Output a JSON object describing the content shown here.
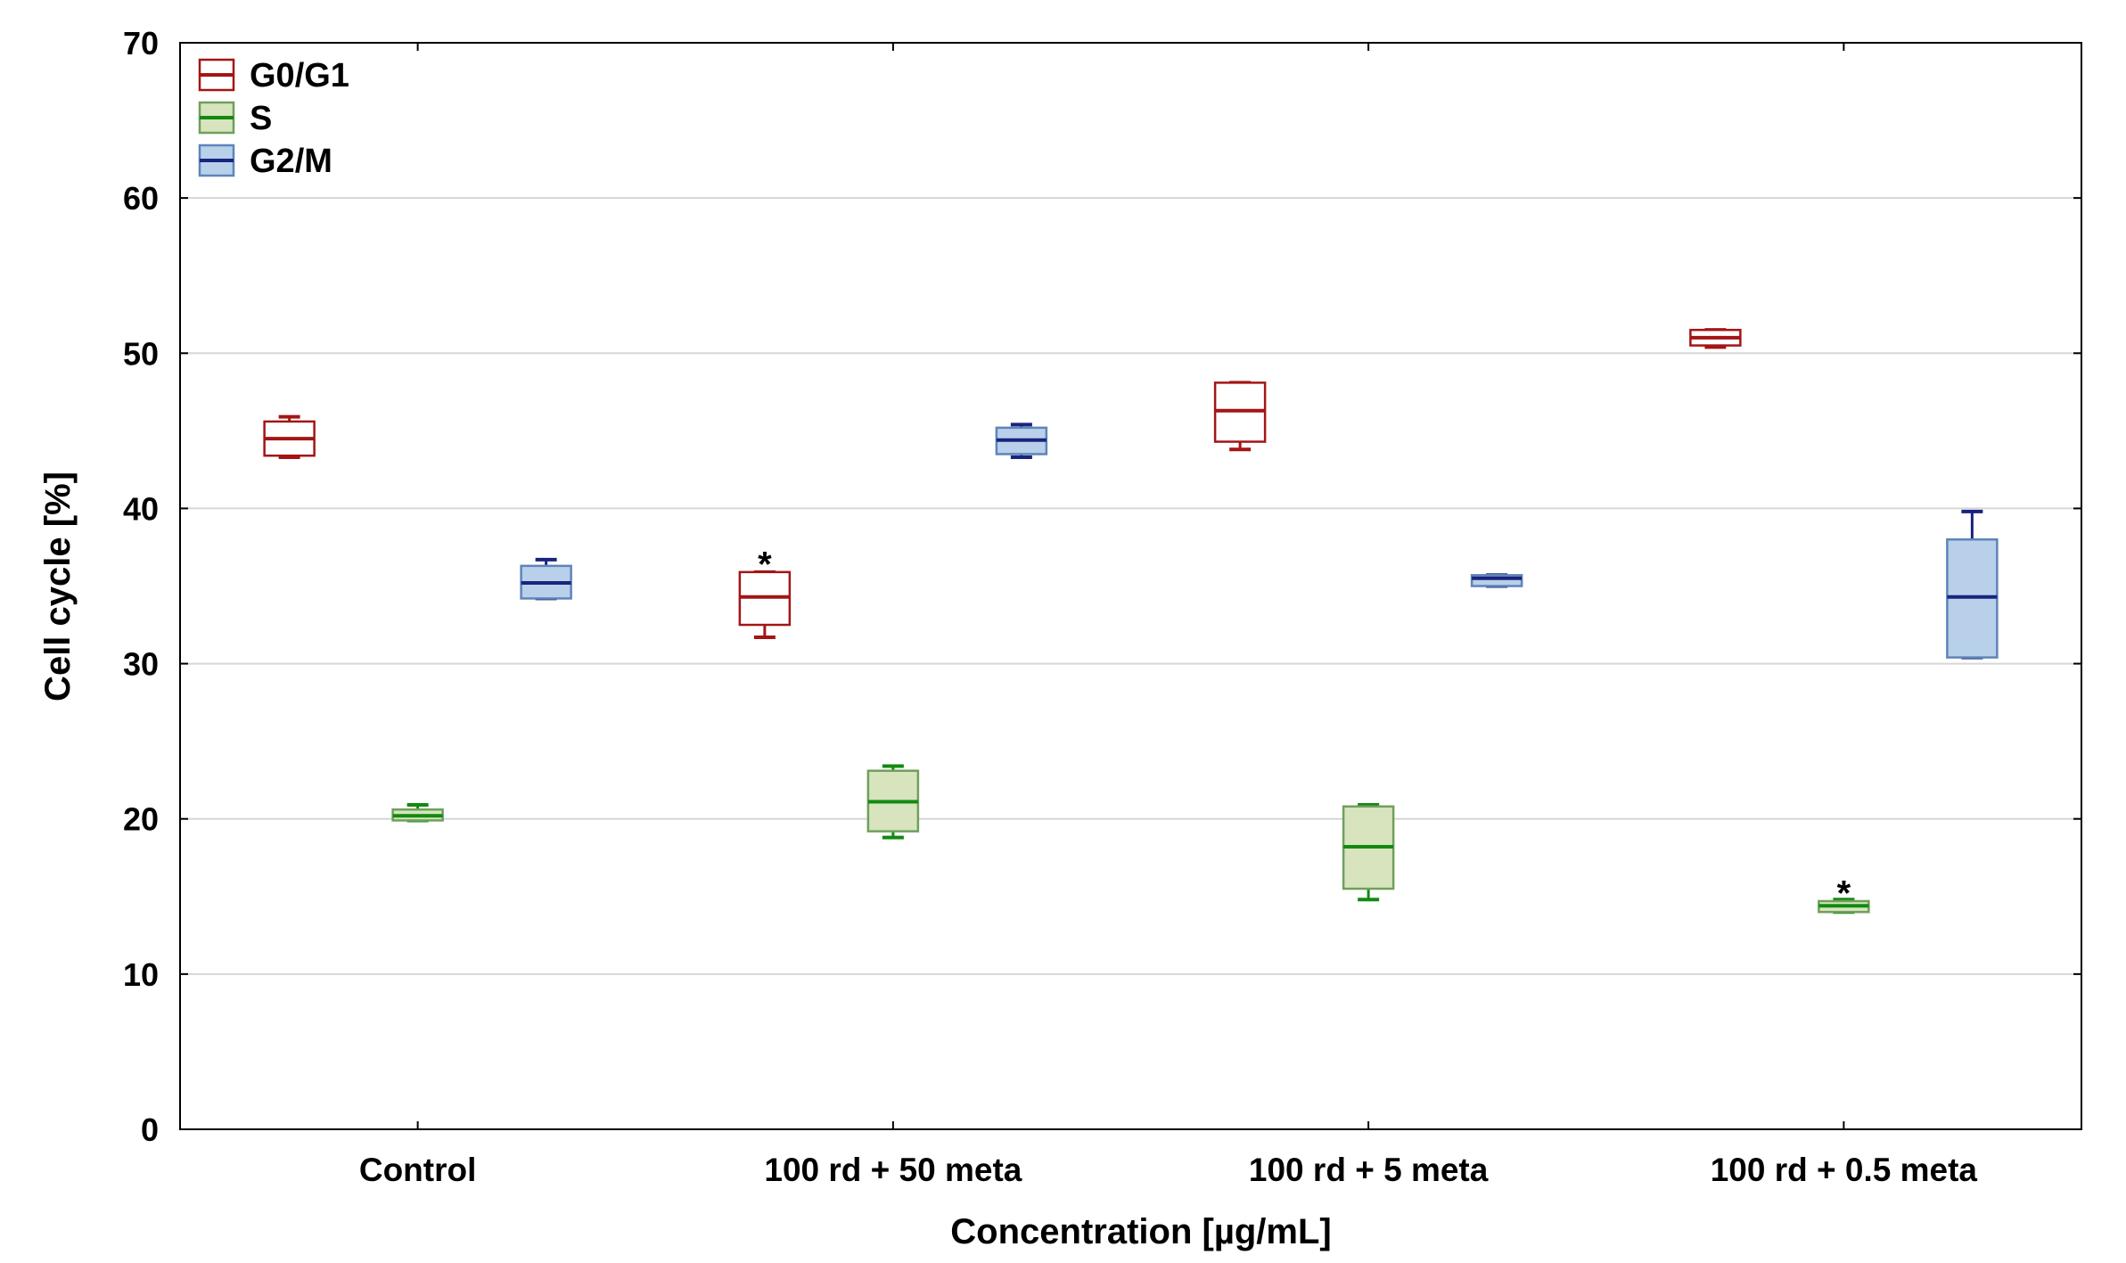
{
  "chart_data": {
    "type": "box",
    "title": "",
    "xlabel": "Concentration [µg/mL]",
    "ylabel": "Cell cycle [%]",
    "ylim": [
      0,
      70
    ],
    "yticks": [
      0,
      10,
      20,
      30,
      40,
      50,
      60,
      70
    ],
    "grid": true,
    "legend_position": "top-left",
    "categories": [
      "Control",
      "100 rd + 50 meta",
      "100 rd + 5 meta",
      "100 rd + 0.5 meta"
    ],
    "series": [
      {
        "name": "G0/G1",
        "stroke": "#a31515",
        "fill": "#ffffff",
        "median_color": "#a31515",
        "boxes": [
          {
            "min": 43.3,
            "q1": 43.4,
            "median": 44.5,
            "q3": 45.6,
            "max": 45.9
          },
          {
            "min": 31.7,
            "q1": 32.5,
            "median": 34.3,
            "q3": 35.9,
            "max": 35.9
          },
          {
            "min": 43.8,
            "q1": 44.3,
            "median": 46.3,
            "q3": 48.1,
            "max": 48.1
          },
          {
            "min": 50.4,
            "q1": 50.5,
            "median": 51.0,
            "q3": 51.5,
            "max": 51.5
          }
        ]
      },
      {
        "name": "S",
        "stroke": "#6fa05a",
        "fill": "#d7e4bd",
        "median_color": "#118a11",
        "boxes": [
          {
            "min": 19.9,
            "q1": 19.9,
            "median": 20.2,
            "q3": 20.6,
            "max": 20.9
          },
          {
            "min": 18.8,
            "q1": 19.2,
            "median": 21.1,
            "q3": 23.1,
            "max": 23.4
          },
          {
            "min": 14.8,
            "q1": 15.5,
            "median": 18.2,
            "q3": 20.8,
            "max": 20.9
          },
          {
            "min": 14.0,
            "q1": 14.0,
            "median": 14.4,
            "q3": 14.7,
            "max": 14.8
          }
        ]
      },
      {
        "name": "G2/M",
        "stroke": "#5f84b8",
        "fill": "#b8d0ea",
        "median_color": "#1a237e",
        "boxes": [
          {
            "min": 34.2,
            "q1": 34.2,
            "median": 35.2,
            "q3": 36.3,
            "max": 36.7
          },
          {
            "min": 43.3,
            "q1": 43.5,
            "median": 44.4,
            "q3": 45.2,
            "max": 45.4
          },
          {
            "min": 35.0,
            "q1": 35.0,
            "median": 35.5,
            "q3": 35.7,
            "max": 35.7
          },
          {
            "min": 30.4,
            "q1": 30.4,
            "median": 34.3,
            "q3": 38.0,
            "max": 39.8
          }
        ]
      }
    ],
    "annotations": [
      {
        "text": "*",
        "category": "100 rd + 50 meta",
        "series": "G0/G1",
        "y": 36.9
      },
      {
        "text": "*",
        "category": "100 rd + 0.5 meta",
        "series": "S",
        "y": 15.7
      }
    ]
  }
}
